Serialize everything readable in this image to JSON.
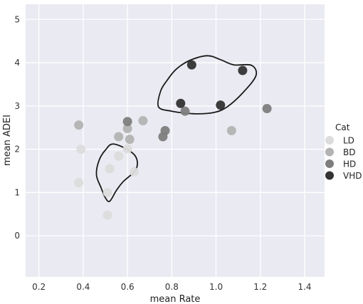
{
  "chart_data": {
    "type": "scatter",
    "xlabel": "mean Rate",
    "ylabel": "mean ADEI",
    "xlim": [
      0.14,
      1.49
    ],
    "ylim": [
      -0.95,
      5.35
    ],
    "xticks": [
      0.2,
      0.4,
      0.6,
      0.8,
      1.0,
      1.2,
      1.4
    ],
    "xtick_labels": [
      "0.2",
      "0.4",
      "0.6",
      "0.8",
      "1.0",
      "1.2",
      "1.4"
    ],
    "yticks": [
      0,
      1,
      2,
      3,
      4,
      5
    ],
    "ytick_labels": [
      "0",
      "1",
      "2",
      "3",
      "4",
      "5"
    ],
    "grid": true,
    "background": "#eaeaf2",
    "legend": {
      "title": "Cat",
      "position": "right",
      "entries": [
        {
          "label": "LD",
          "color": "#dcdcdc"
        },
        {
          "label": "BD",
          "color": "#b3b3b3"
        },
        {
          "label": "HD",
          "color": "#7e7e7e"
        },
        {
          "label": "VHD",
          "color": "#333333"
        }
      ]
    },
    "series": [
      {
        "name": "LD",
        "color": "#dcdcdc",
        "points": [
          {
            "x": 0.39,
            "y": 2.0
          },
          {
            "x": 0.38,
            "y": 1.23
          },
          {
            "x": 0.51,
            "y": 1.0
          },
          {
            "x": 0.51,
            "y": 0.48
          },
          {
            "x": 0.52,
            "y": 1.55
          },
          {
            "x": 0.56,
            "y": 1.84
          },
          {
            "x": 0.6,
            "y": 2.01
          },
          {
            "x": 0.63,
            "y": 1.48
          }
        ]
      },
      {
        "name": "BD",
        "color": "#b3b3b3",
        "points": [
          {
            "x": 0.38,
            "y": 2.56
          },
          {
            "x": 0.56,
            "y": 2.29
          },
          {
            "x": 0.6,
            "y": 2.48
          },
          {
            "x": 0.61,
            "y": 2.23
          },
          {
            "x": 0.67,
            "y": 2.66
          },
          {
            "x": 1.07,
            "y": 2.43
          }
        ]
      },
      {
        "name": "HD",
        "color": "#7e7e7e",
        "points": [
          {
            "x": 0.6,
            "y": 2.64
          },
          {
            "x": 0.76,
            "y": 2.29
          },
          {
            "x": 0.77,
            "y": 2.43
          },
          {
            "x": 0.86,
            "y": 2.88
          },
          {
            "x": 1.23,
            "y": 2.94
          }
        ]
      },
      {
        "name": "VHD",
        "color": "#333333",
        "points": [
          {
            "x": 0.89,
            "y": 3.95
          },
          {
            "x": 1.12,
            "y": 3.82
          },
          {
            "x": 0.84,
            "y": 3.06
          },
          {
            "x": 1.02,
            "y": 3.02
          }
        ]
      }
    ],
    "contours": [
      {
        "points": [
          [
            0.54,
            2.12
          ],
          [
            0.63,
            1.88
          ],
          [
            0.64,
            1.55
          ],
          [
            0.58,
            1.25
          ],
          [
            0.55,
            1.05
          ],
          [
            0.52,
            0.8
          ],
          [
            0.5,
            0.88
          ],
          [
            0.48,
            1.12
          ],
          [
            0.46,
            1.4
          ],
          [
            0.47,
            1.72
          ],
          [
            0.5,
            1.98
          ]
        ]
      },
      {
        "points": [
          [
            0.82,
            3.85
          ],
          [
            0.88,
            4.05
          ],
          [
            0.96,
            4.16
          ],
          [
            1.02,
            4.07
          ],
          [
            1.08,
            3.95
          ],
          [
            1.16,
            3.94
          ],
          [
            1.18,
            3.7
          ],
          [
            1.12,
            3.3
          ],
          [
            1.05,
            2.98
          ],
          [
            0.99,
            2.85
          ],
          [
            0.9,
            2.82
          ],
          [
            0.8,
            2.88
          ],
          [
            0.74,
            2.98
          ],
          [
            0.75,
            3.35
          ],
          [
            0.78,
            3.6
          ]
        ]
      }
    ]
  }
}
